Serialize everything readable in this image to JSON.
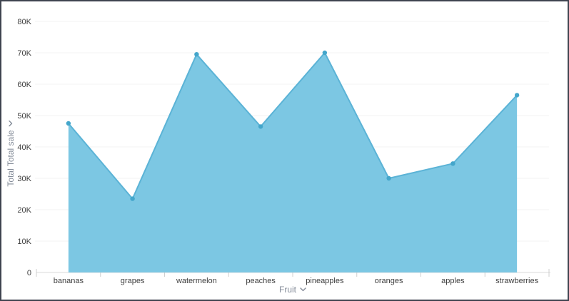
{
  "window": {
    "background": "#ffffff",
    "border_color": "#3f4450"
  },
  "chart_data": {
    "type": "area",
    "title": "",
    "categories": [
      "bananas",
      "grapes",
      "watermelon",
      "peaches",
      "pineapples",
      "oranges",
      "apples",
      "strawberries"
    ],
    "series": [
      {
        "name": "Total Total sale",
        "values": [
          47500,
          23500,
          69500,
          46500,
          70000,
          30000,
          34700,
          56500
        ]
      }
    ],
    "xlabel": "Fruit",
    "ylabel": "Total Total sale",
    "ylim": [
      0,
      80000
    ],
    "ytick_interval": 10000,
    "ytick_labels": [
      "0",
      "10K",
      "20K",
      "30K",
      "40K",
      "50K",
      "60K",
      "70K",
      "80K"
    ],
    "grid": "horizontal",
    "legend_position": "none",
    "marker_shape": "circle",
    "colors": {
      "area_fill": "#7cc7e3",
      "line": "#5bb3d6",
      "marker": "#44a6cb",
      "gridline": "#f3f3f3",
      "axis_line": "#d8d8d8",
      "tick_mark": "#cfcfcf",
      "tick_text": "#3d3d3d",
      "axis_title_text": "#848c99"
    }
  },
  "axes": {
    "x_title": "Fruit",
    "y_title": "Total Total sale",
    "x_title_icon": "chevron-down-icon",
    "y_title_icon": "chevron-down-icon"
  }
}
